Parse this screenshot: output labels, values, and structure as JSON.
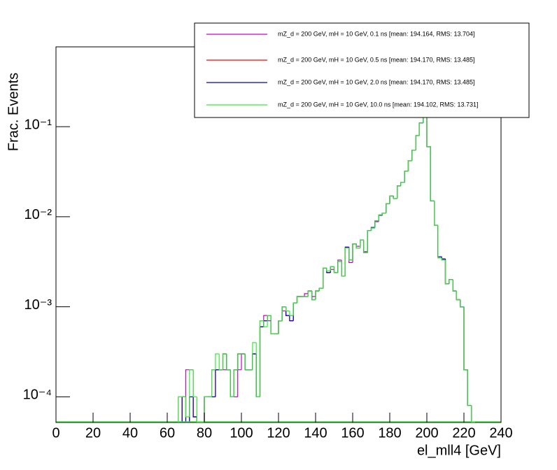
{
  "chart_data": {
    "type": "histogram",
    "ylabel": "Frac. Events",
    "xlabel": "el_mll4 [GeV]",
    "log_y": true,
    "legend": "top-right",
    "xlim": [
      0,
      240
    ],
    "xticks": [
      0,
      20,
      40,
      60,
      80,
      100,
      120,
      140,
      160,
      180,
      200,
      220,
      240
    ],
    "ylim": [
      5.2e-05,
      0.77
    ],
    "yticks": [
      {
        "value": 0.0001,
        "label": "10⁻⁴"
      },
      {
        "value": 0.001,
        "label": "10⁻³"
      },
      {
        "value": 0.01,
        "label": "10⁻²"
      },
      {
        "value": 0.1,
        "label": "10⁻¹"
      }
    ],
    "bins": [
      66,
      68,
      70,
      72,
      74,
      76,
      78,
      80,
      82,
      84,
      86,
      88,
      90,
      92,
      94,
      96,
      98,
      100,
      102,
      104,
      106,
      108,
      110,
      112,
      114,
      116,
      118,
      120,
      122,
      124,
      126,
      128,
      130,
      132,
      134,
      136,
      138,
      140,
      142,
      144,
      146,
      148,
      150,
      152,
      154,
      156,
      158,
      160,
      162,
      164,
      166,
      168,
      170,
      172,
      174,
      176,
      178,
      180,
      182,
      184,
      186,
      188,
      190,
      192,
      194,
      196,
      198,
      200,
      202,
      204,
      206,
      208,
      210,
      212,
      214,
      216,
      218,
      220,
      222,
      224,
      226
    ],
    "series": [
      {
        "name": "mZ_d = 200 GeV, mH = 10 GeV, 0.1 ns [mean: 194.164, RMS: 13.704]",
        "color": "#cc00cc",
        "values": [
          0.0001,
          0.0001,
          0.0002,
          0.0002,
          6e-05,
          0,
          0,
          0.0001,
          0.0001,
          0.0002,
          0.0002,
          0.0002,
          0.0002,
          0.0002,
          0.0001,
          0.0001,
          0.0002,
          0.0003,
          0.0002,
          0.0002,
          0.0003,
          0.0001,
          0.0007,
          0.0008,
          0.0007,
          0.0005,
          0.0005,
          0.0007,
          0.0009,
          0.0008,
          0.0008,
          0.0011,
          0.0013,
          0.0013,
          0.0014,
          0.0015,
          0.0013,
          0.0015,
          0.0016,
          0.0027,
          0.0025,
          0.0026,
          0.0024,
          0.0033,
          0.0022,
          0.0045,
          0.0031,
          0.005,
          0.0047,
          0.0055,
          0.0041,
          0.007,
          0.0075,
          0.0088,
          0.0105,
          0.011,
          0.014,
          0.017,
          0.016,
          0.022,
          0.024,
          0.032,
          0.042,
          0.055,
          0.08,
          0.11,
          0.35,
          0.06,
          0.015,
          0.008,
          0.0035,
          0.0033,
          0.0018,
          0.002,
          0.0015,
          0.0012,
          0.001,
          0.0002,
          8e-05,
          0
        ]
      },
      {
        "name": "mZ_d = 200 GeV, mH = 10 GeV, 0.5 ns [mean: 194.170, RMS: 13.485]",
        "color": "#ff0000",
        "values": [
          0,
          0.0001,
          0,
          0.0001,
          6e-05,
          0,
          0,
          0.0001,
          0.0001,
          0.0001,
          0.0002,
          0.0002,
          0.0003,
          0.0002,
          0.0001,
          0.0002,
          0.0003,
          0.0003,
          0.0002,
          0.0002,
          0.0003,
          0.0001,
          0.0006,
          0.0007,
          0.0008,
          0.0005,
          0.0005,
          0.0007,
          0.001,
          0.0008,
          0.0007,
          0.0011,
          0.0013,
          0.0013,
          0.0013,
          0.0015,
          0.0012,
          0.0015,
          0.0016,
          0.0027,
          0.0024,
          0.0028,
          0.0024,
          0.0032,
          0.0022,
          0.0046,
          0.0033,
          0.005,
          0.0045,
          0.0055,
          0.004,
          0.007,
          0.0076,
          0.009,
          0.0104,
          0.011,
          0.014,
          0.017,
          0.016,
          0.022,
          0.024,
          0.032,
          0.042,
          0.055,
          0.08,
          0.11,
          0.35,
          0.06,
          0.015,
          0.008,
          0.0036,
          0.0034,
          0.0018,
          0.002,
          0.0015,
          0.0012,
          0.001,
          0.0002,
          8e-05,
          0
        ]
      },
      {
        "name": "mZ_d = 200 GeV, mH = 10 GeV, 2.0 ns [mean: 194.170, RMS: 13.485]",
        "color": "#0000cc",
        "values": [
          0,
          0.0001,
          0,
          0.0001,
          6e-05,
          0,
          0,
          0.0001,
          0.0001,
          0.0001,
          0.0002,
          0.0002,
          0.0003,
          0.0002,
          0.0001,
          0.0002,
          0.0003,
          0.0003,
          0.0002,
          0.0002,
          0.0003,
          0.0001,
          0.0006,
          0.0007,
          0.0008,
          0.0005,
          0.0005,
          0.0007,
          0.001,
          0.0008,
          0.0007,
          0.0011,
          0.0013,
          0.0013,
          0.0013,
          0.0015,
          0.0012,
          0.0015,
          0.0016,
          0.0027,
          0.0024,
          0.0028,
          0.0024,
          0.0032,
          0.0022,
          0.0046,
          0.0033,
          0.005,
          0.0045,
          0.0055,
          0.004,
          0.007,
          0.0076,
          0.009,
          0.0104,
          0.011,
          0.014,
          0.017,
          0.016,
          0.022,
          0.024,
          0.032,
          0.042,
          0.055,
          0.08,
          0.11,
          0.35,
          0.06,
          0.015,
          0.008,
          0.0036,
          0.0034,
          0.0018,
          0.002,
          0.0015,
          0.0012,
          0.001,
          0.0002,
          8e-05,
          0
        ]
      },
      {
        "name": "mZ_d = 200 GeV, mH = 10 GeV, 10.0 ns [mean: 194.102, RMS: 13.731]",
        "color": "#33ee33",
        "values": [
          0.0001,
          0.0001,
          6e-05,
          0.0002,
          0.0001,
          0,
          0,
          0.0001,
          0.0001,
          0.0002,
          0.0003,
          0.0002,
          0.0003,
          0.0002,
          0.0001,
          0.0002,
          0.0003,
          0.0003,
          0.0002,
          0.0002,
          0.0004,
          0.0001,
          0.0007,
          0.0006,
          0.0008,
          0.0005,
          0.0005,
          0.0007,
          0.001,
          0.0009,
          0.0008,
          0.0011,
          0.0013,
          0.0013,
          0.0013,
          0.0015,
          0.0012,
          0.0015,
          0.0016,
          0.0027,
          0.0025,
          0.0028,
          0.0024,
          0.0032,
          0.0022,
          0.0045,
          0.0033,
          0.005,
          0.0045,
          0.0055,
          0.004,
          0.007,
          0.0075,
          0.009,
          0.0105,
          0.011,
          0.014,
          0.017,
          0.016,
          0.022,
          0.024,
          0.032,
          0.042,
          0.055,
          0.08,
          0.11,
          0.35,
          0.06,
          0.015,
          0.008,
          0.0035,
          0.0033,
          0.0018,
          0.002,
          0.0015,
          0.0012,
          0.001,
          0.0002,
          8e-05,
          0
        ]
      }
    ]
  }
}
